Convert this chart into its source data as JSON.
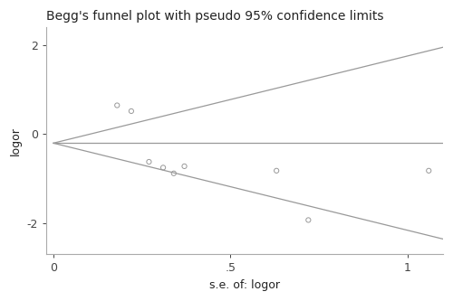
{
  "title": "Begg's funnel plot with pseudo 95% confidence limits",
  "xlabel": "s.e. of: logor",
  "ylabel": "logor",
  "xlim": [
    -0.02,
    1.1
  ],
  "ylim": [
    -2.7,
    2.4
  ],
  "yticks": [
    -2,
    0,
    2
  ],
  "xticks": [
    0,
    0.5,
    1
  ],
  "xticklabels": [
    "0",
    ".5",
    "1"
  ],
  "pooled_logor": -0.2,
  "se_max": 1.1,
  "scatter_x": [
    0.18,
    0.22,
    0.27,
    0.31,
    0.34,
    0.37,
    0.63,
    1.06,
    0.72
  ],
  "scatter_y": [
    0.65,
    0.52,
    -0.62,
    -0.75,
    -0.88,
    -0.72,
    -0.82,
    -0.82,
    -1.93
  ],
  "marker_color": "none",
  "marker_edgecolor": "#999999",
  "line_color": "#999999",
  "bg_color": "#ffffff",
  "spine_color": "#aaaaaa",
  "title_fontsize": 10,
  "label_fontsize": 9,
  "tick_fontsize": 9
}
